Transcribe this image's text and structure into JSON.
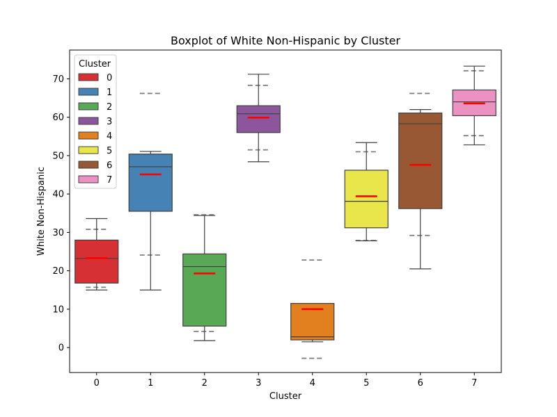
{
  "chart_data": {
    "type": "box",
    "title": "Boxplot of White Non-Hispanic by Cluster",
    "xlabel": "Cluster",
    "ylabel": "White Non-Hispanic",
    "ylim": [
      -6.5,
      77.5
    ],
    "yticks": [
      0,
      10,
      20,
      30,
      40,
      50,
      60,
      70
    ],
    "categories": [
      "0",
      "1",
      "2",
      "3",
      "4",
      "5",
      "6",
      "7"
    ],
    "legend": {
      "title": "Cluster",
      "placement": "top-left"
    },
    "series": [
      {
        "name": "0",
        "color": "#d62f34",
        "whisker_low": 15.0,
        "q1": 16.8,
        "median": 23.2,
        "q3": 28.0,
        "whisker_high": 33.6,
        "mean": 23.3,
        "band_low": 15.7,
        "band_high": 30.8
      },
      {
        "name": "1",
        "color": "#4682b4",
        "whisker_low": 15.0,
        "q1": 35.5,
        "median": 47.1,
        "q3": 50.4,
        "whisker_high": 51.1,
        "mean": 45.1,
        "band_low": 24.1,
        "band_high": 66.2
      },
      {
        "name": "2",
        "color": "#59a855",
        "whisker_low": 1.8,
        "q1": 5.6,
        "median": 21.1,
        "q3": 24.4,
        "whisker_high": 34.4,
        "mean": 19.3,
        "band_low": 4.2,
        "band_high": 34.6
      },
      {
        "name": "3",
        "color": "#8b569b",
        "whisker_low": 48.4,
        "q1": 56.0,
        "median": 60.9,
        "q3": 63.0,
        "whisker_high": 71.2,
        "mean": 59.9,
        "band_low": 51.5,
        "band_high": 68.3
      },
      {
        "name": "4",
        "color": "#e27f1e",
        "whisker_low": 1.5,
        "q1": 2.0,
        "median": 2.8,
        "q3": 11.5,
        "whisker_high": 11.5,
        "mean": 10.0,
        "band_low": -2.8,
        "band_high": 22.8
      },
      {
        "name": "5",
        "color": "#e8e64a",
        "whisker_low": 27.8,
        "q1": 31.2,
        "median": 38.1,
        "q3": 46.2,
        "whisker_high": 53.4,
        "mean": 39.4,
        "band_low": 27.9,
        "band_high": 51.0
      },
      {
        "name": "6",
        "color": "#995834",
        "whisker_low": 20.5,
        "q1": 36.2,
        "median": 58.3,
        "q3": 61.1,
        "whisker_high": 62.0,
        "mean": 47.6,
        "band_low": 29.2,
        "band_high": 66.2
      },
      {
        "name": "7",
        "color": "#ec92c3",
        "whisker_low": 52.8,
        "q1": 60.4,
        "median": 64.0,
        "q3": 67.1,
        "whisker_high": 73.3,
        "mean": 63.6,
        "band_low": 55.2,
        "band_high": 72.1
      }
    ]
  }
}
